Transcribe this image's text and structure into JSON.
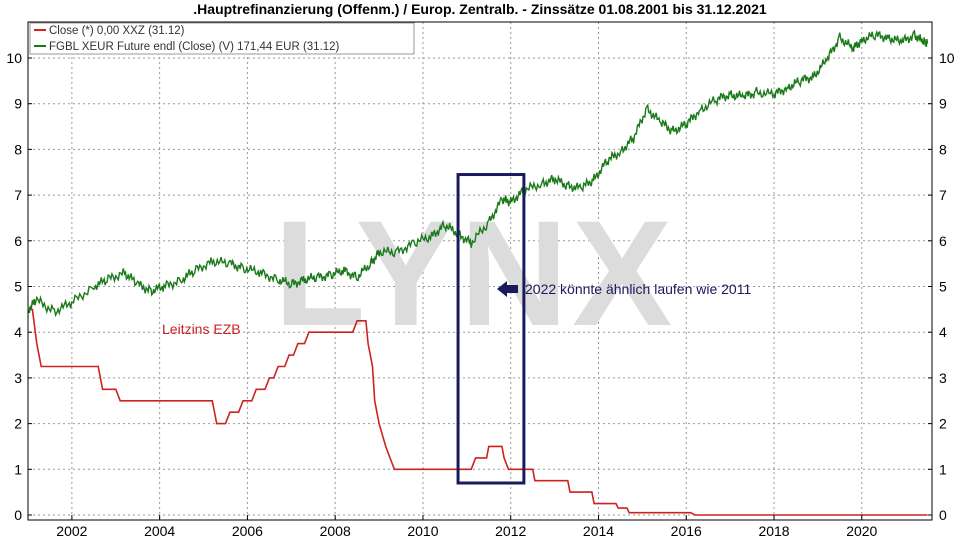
{
  "title": ".Hauptrefinanzierung (Offenm.) / Europ. Zentralb. - Zinssätze 01.08.2001 bis 31.12.2021",
  "watermark": "LYNX",
  "annotation": "2022 könnte ähnlich laufen wie 2011",
  "series_label_text": "Leitzins EZB",
  "colors": {
    "rate": "#cc2222",
    "bund": "#1a7a1a",
    "box": "#1a1a5e",
    "watermark": "#dcdcdc"
  },
  "chart_data": {
    "type": "line",
    "xlim": [
      2001.0,
      2021.6
    ],
    "ylim": [
      0,
      10.6
    ],
    "x_ticks": [
      "2002",
      "2004",
      "2006",
      "2008",
      "2010",
      "2012",
      "2014",
      "2016",
      "2018",
      "2020"
    ],
    "x_tick_values": [
      2002,
      2004,
      2006,
      2008,
      2010,
      2012,
      2014,
      2016,
      2018,
      2020
    ],
    "y_ticks": [
      "0",
      "1",
      "2",
      "3",
      "4",
      "5",
      "6",
      "7",
      "8",
      "9",
      "10"
    ],
    "y_tick_values": [
      0,
      1,
      2,
      3,
      4,
      5,
      6,
      7,
      8,
      9,
      10
    ],
    "grid": true,
    "legend": [
      {
        "label": "Close (*) 0,00 XXZ (31.12)",
        "color": "#cc2222"
      },
      {
        "label": "FGBL XEUR Future endl (Close) (V) 171,44 EUR (31.12)",
        "color": "#1a7a1a"
      }
    ],
    "series": [
      {
        "name": "Close (*) 0,00 XXZ (31.12)",
        "step": true,
        "points": [
          [
            2001.0,
            4.5
          ],
          [
            2001.1,
            4.5
          ],
          [
            2001.2,
            3.75
          ],
          [
            2001.3,
            3.25
          ],
          [
            2002.6,
            3.25
          ],
          [
            2002.7,
            2.75
          ],
          [
            2003.0,
            2.75
          ],
          [
            2003.1,
            2.5
          ],
          [
            2005.2,
            2.5
          ],
          [
            2005.3,
            2.0
          ],
          [
            2005.5,
            2.0
          ],
          [
            2005.6,
            2.25
          ],
          [
            2005.8,
            2.25
          ],
          [
            2005.9,
            2.5
          ],
          [
            2006.1,
            2.5
          ],
          [
            2006.2,
            2.75
          ],
          [
            2006.4,
            2.75
          ],
          [
            2006.5,
            3.0
          ],
          [
            2006.6,
            3.0
          ],
          [
            2006.7,
            3.25
          ],
          [
            2006.85,
            3.25
          ],
          [
            2006.95,
            3.5
          ],
          [
            2007.05,
            3.5
          ],
          [
            2007.15,
            3.75
          ],
          [
            2007.3,
            3.75
          ],
          [
            2007.4,
            4.0
          ],
          [
            2008.4,
            4.0
          ],
          [
            2008.5,
            4.25
          ],
          [
            2008.7,
            4.25
          ],
          [
            2008.75,
            3.75
          ],
          [
            2008.85,
            3.25
          ],
          [
            2008.9,
            2.5
          ],
          [
            2009.0,
            2.0
          ],
          [
            2009.15,
            1.5
          ],
          [
            2009.25,
            1.25
          ],
          [
            2009.35,
            1.0
          ],
          [
            2011.1,
            1.0
          ],
          [
            2011.2,
            1.25
          ],
          [
            2011.45,
            1.25
          ],
          [
            2011.5,
            1.5
          ],
          [
            2011.8,
            1.5
          ],
          [
            2011.85,
            1.25
          ],
          [
            2011.95,
            1.0
          ],
          [
            2012.5,
            1.0
          ],
          [
            2012.55,
            0.75
          ],
          [
            2013.3,
            0.75
          ],
          [
            2013.35,
            0.5
          ],
          [
            2013.85,
            0.5
          ],
          [
            2013.9,
            0.25
          ],
          [
            2014.4,
            0.25
          ],
          [
            2014.45,
            0.15
          ],
          [
            2014.65,
            0.15
          ],
          [
            2014.7,
            0.05
          ],
          [
            2016.1,
            0.05
          ],
          [
            2016.2,
            0.0
          ],
          [
            2021.5,
            0.0
          ]
        ]
      },
      {
        "name": "FGBL XEUR Future endl (Close) (V) 171,44 EUR (31.12)",
        "points": [
          [
            2001.0,
            4.5
          ],
          [
            2001.2,
            4.7
          ],
          [
            2001.6,
            4.45
          ],
          [
            2002.0,
            4.65
          ],
          [
            2002.5,
            5.0
          ],
          [
            2002.8,
            5.15
          ],
          [
            2003.2,
            5.3
          ],
          [
            2003.5,
            5.05
          ],
          [
            2003.8,
            4.9
          ],
          [
            2004.1,
            5.0
          ],
          [
            2004.5,
            5.15
          ],
          [
            2004.8,
            5.35
          ],
          [
            2005.2,
            5.55
          ],
          [
            2005.6,
            5.5
          ],
          [
            2005.9,
            5.4
          ],
          [
            2006.3,
            5.3
          ],
          [
            2006.7,
            5.15
          ],
          [
            2007.0,
            5.05
          ],
          [
            2007.3,
            5.15
          ],
          [
            2007.6,
            5.2
          ],
          [
            2007.9,
            5.25
          ],
          [
            2008.2,
            5.35
          ],
          [
            2008.5,
            5.2
          ],
          [
            2008.8,
            5.5
          ],
          [
            2009.0,
            5.75
          ],
          [
            2009.4,
            5.75
          ],
          [
            2009.8,
            5.95
          ],
          [
            2010.2,
            6.1
          ],
          [
            2010.5,
            6.35
          ],
          [
            2010.8,
            6.15
          ],
          [
            2011.1,
            5.95
          ],
          [
            2011.5,
            6.4
          ],
          [
            2011.8,
            6.9
          ],
          [
            2012.0,
            6.85
          ],
          [
            2012.3,
            7.1
          ],
          [
            2012.7,
            7.25
          ],
          [
            2013.0,
            7.35
          ],
          [
            2013.3,
            7.2
          ],
          [
            2013.6,
            7.15
          ],
          [
            2013.9,
            7.35
          ],
          [
            2014.2,
            7.75
          ],
          [
            2014.5,
            7.95
          ],
          [
            2014.8,
            8.25
          ],
          [
            2015.1,
            8.9
          ],
          [
            2015.4,
            8.6
          ],
          [
            2015.7,
            8.4
          ],
          [
            2016.0,
            8.55
          ],
          [
            2016.3,
            8.85
          ],
          [
            2016.7,
            9.1
          ],
          [
            2017.0,
            9.2
          ],
          [
            2017.3,
            9.15
          ],
          [
            2017.6,
            9.25
          ],
          [
            2018.0,
            9.2
          ],
          [
            2018.3,
            9.35
          ],
          [
            2018.6,
            9.5
          ],
          [
            2018.9,
            9.6
          ],
          [
            2019.2,
            9.95
          ],
          [
            2019.5,
            10.45
          ],
          [
            2019.8,
            10.2
          ],
          [
            2020.0,
            10.4
          ],
          [
            2020.3,
            10.5
          ],
          [
            2020.6,
            10.45
          ],
          [
            2020.9,
            10.35
          ],
          [
            2021.2,
            10.5
          ],
          [
            2021.4,
            10.35
          ],
          [
            2021.5,
            10.35
          ]
        ]
      }
    ]
  }
}
